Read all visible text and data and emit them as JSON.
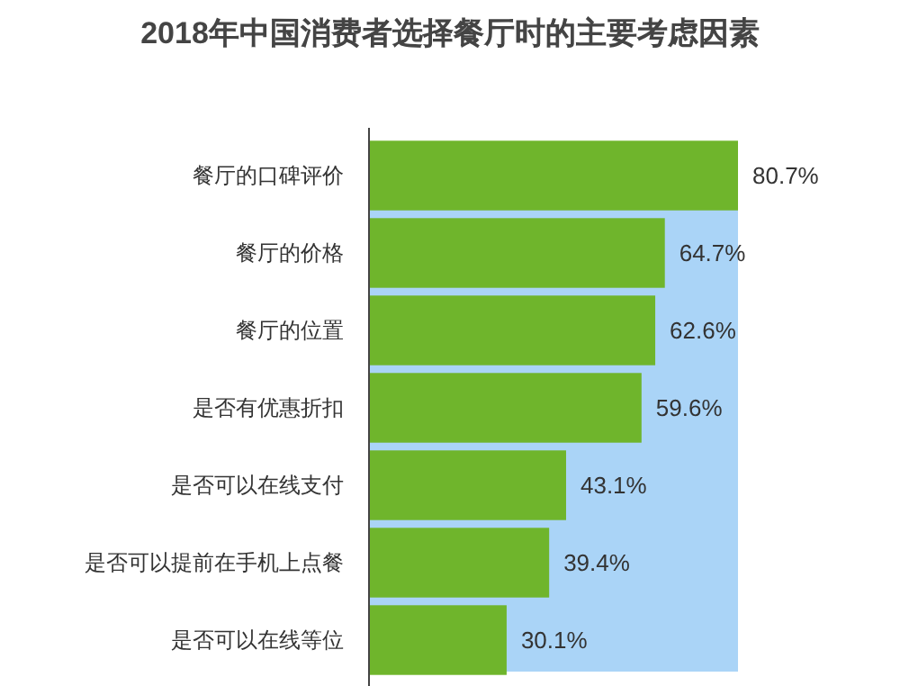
{
  "chart_data": {
    "type": "bar",
    "orientation": "horizontal",
    "title": "2018年中国消费者选择餐厅时的主要考虑因素",
    "categories": [
      "餐厅的口碑评价",
      "餐厅的价格",
      "餐厅的位置",
      "是否有优惠折扣",
      "是否可以在线支付",
      "是否可以提前在手机上点餐",
      "是否可以在线等位"
    ],
    "values": [
      80.7,
      64.7,
      62.6,
      59.6,
      43.1,
      39.4,
      30.1
    ],
    "value_labels": [
      "80.7%",
      "64.7%",
      "62.6%",
      "59.6%",
      "43.1%",
      "39.4%",
      "30.1%"
    ],
    "color": "#6fb52c",
    "bands": [
      {
        "axis": "x",
        "from": 0,
        "to": 80.7,
        "color": "#aad4f7"
      }
    ]
  }
}
